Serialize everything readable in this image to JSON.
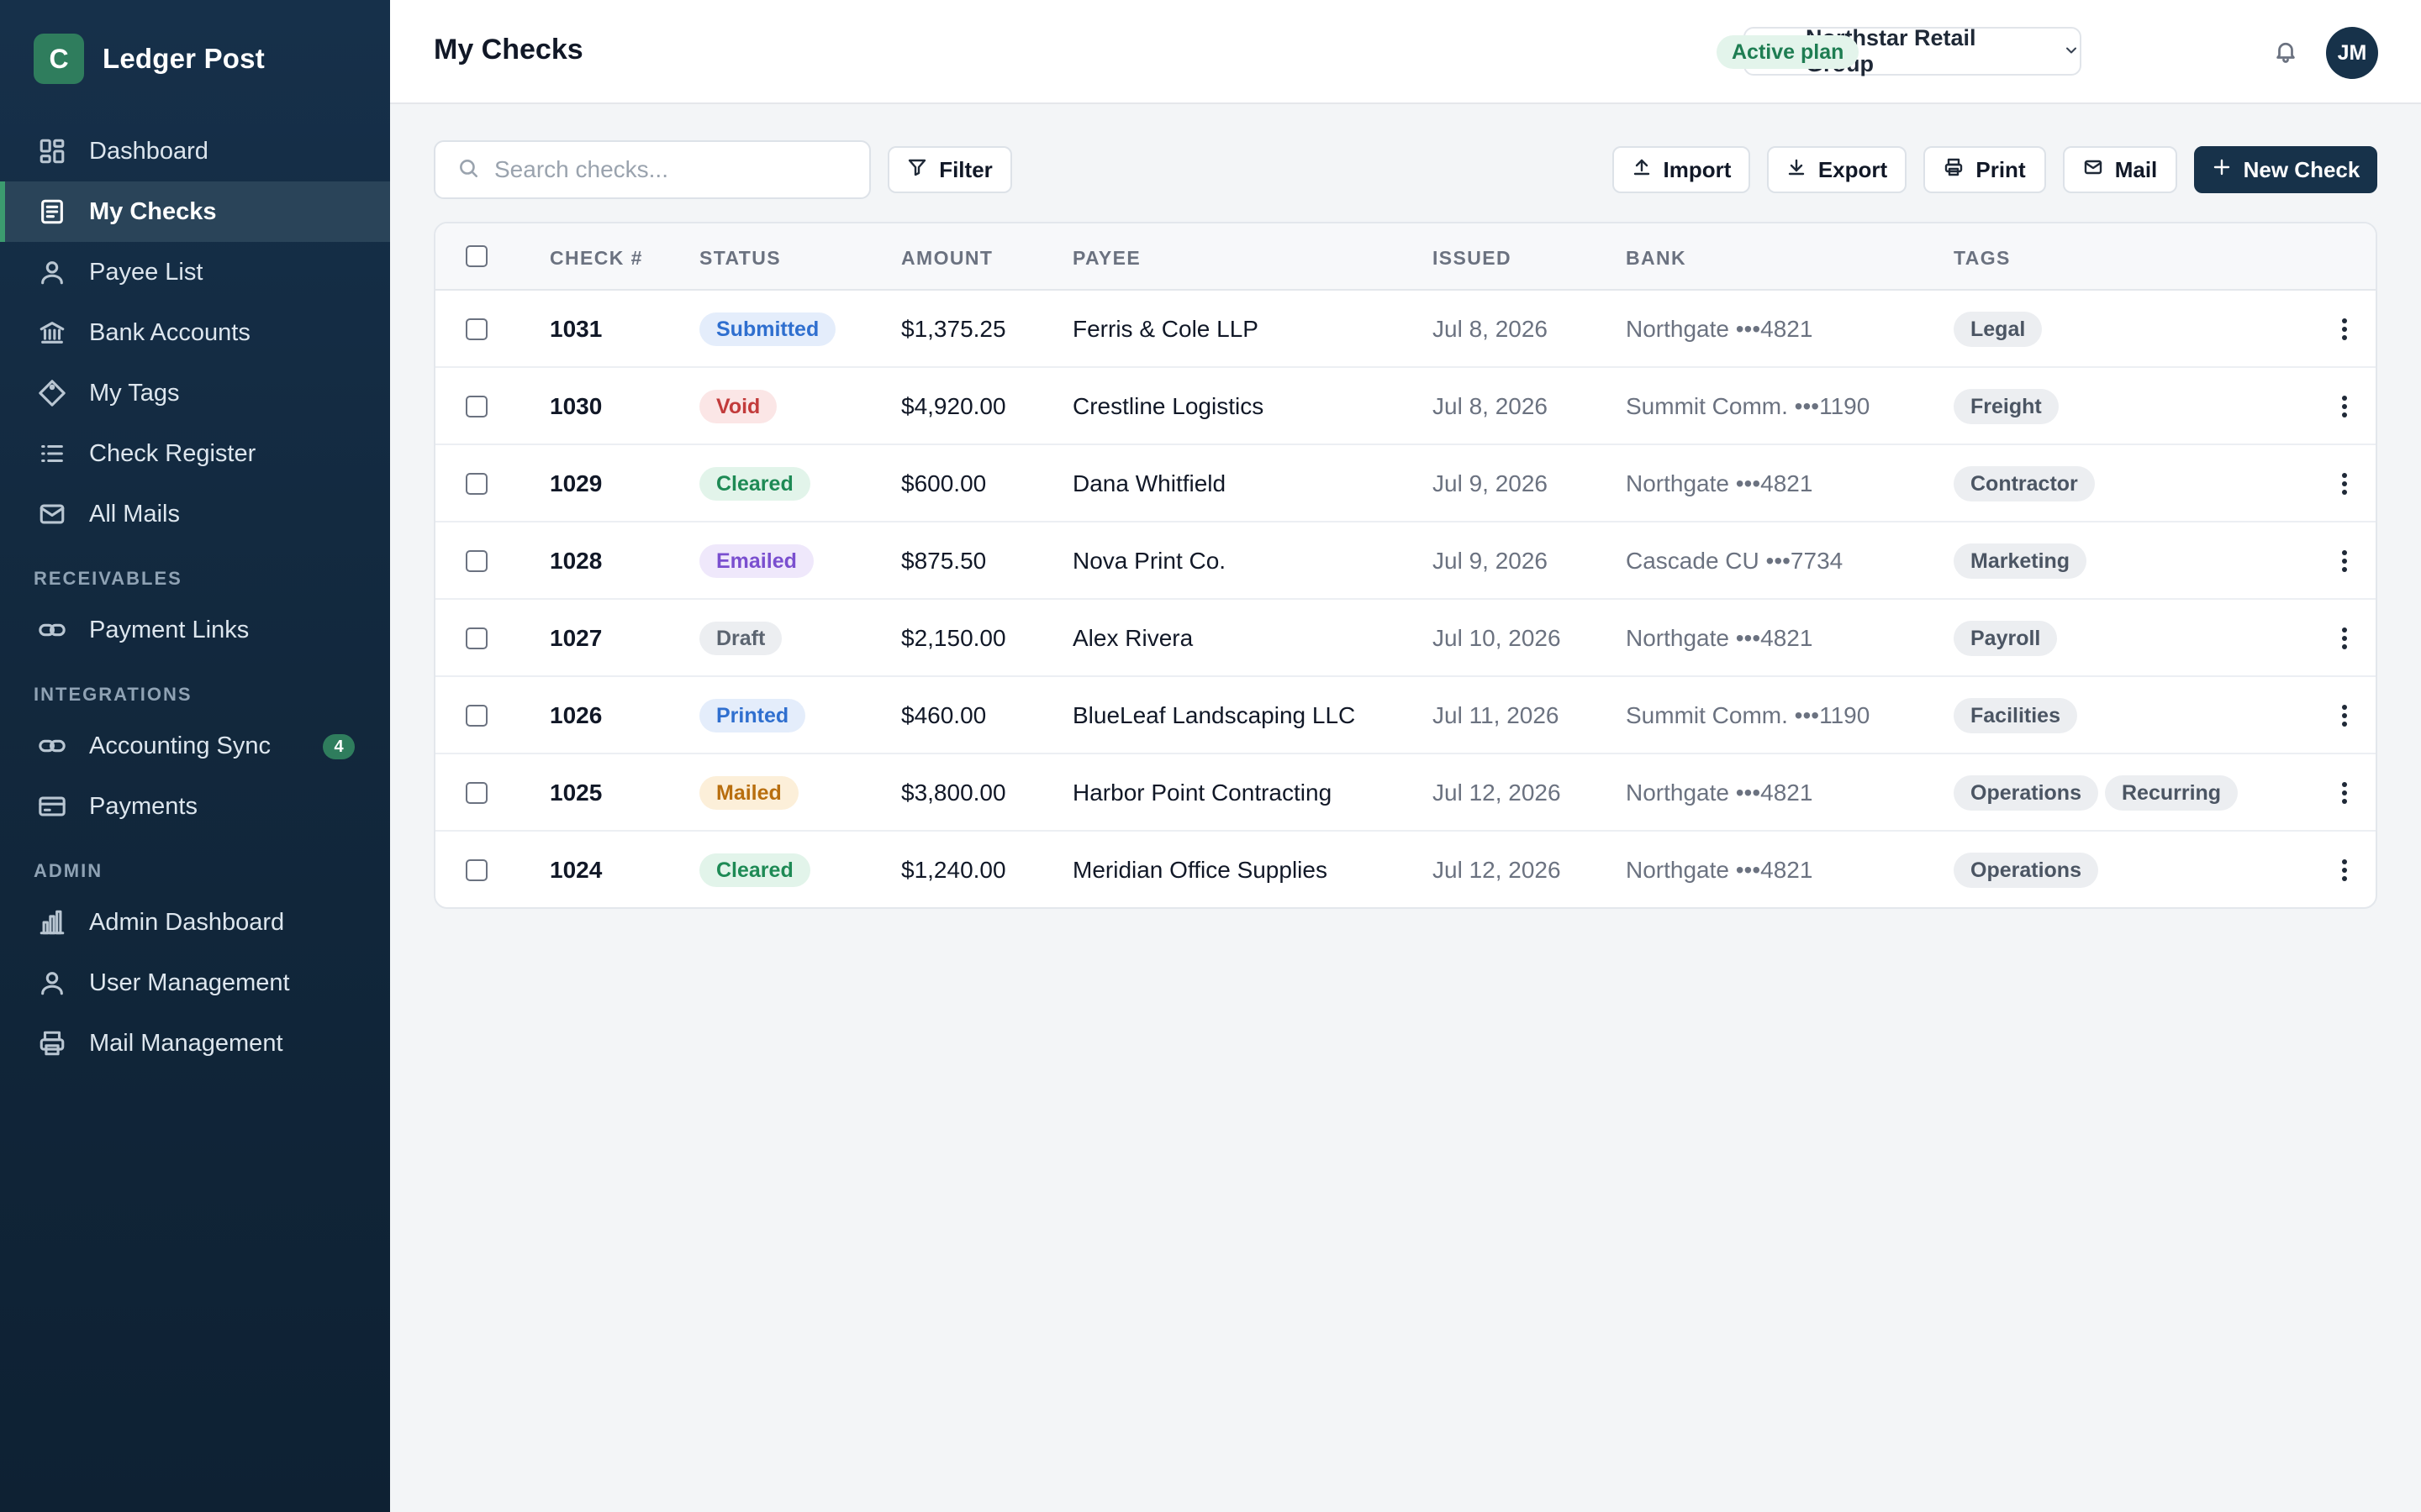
{
  "app": {
    "brand_letter": "C",
    "brand_name": "Ledger Post",
    "page_title": "My Checks"
  },
  "sidebar": {
    "main": [
      {
        "label": "Dashboard",
        "icon": "dashboard-icon"
      },
      {
        "label": "My Checks",
        "icon": "checks-icon",
        "active": true
      },
      {
        "label": "Payee List",
        "icon": "user-icon"
      },
      {
        "label": "Bank Accounts",
        "icon": "bank-icon"
      },
      {
        "label": "My Tags",
        "icon": "tag-icon"
      },
      {
        "label": "Check Register",
        "icon": "list-icon"
      },
      {
        "label": "All Mails",
        "icon": "mail-icon"
      }
    ],
    "sections": {
      "receivables": "RECEIVABLES",
      "integrations": "INTEGRATIONS",
      "admin": "ADMIN"
    },
    "receivables": [
      {
        "label": "Payment Links",
        "icon": "link-icon"
      }
    ],
    "integrations": [
      {
        "label": "Accounting Sync",
        "icon": "sync-icon",
        "badge": "4"
      },
      {
        "label": "Payments",
        "icon": "card-icon"
      }
    ],
    "admin": [
      {
        "label": "Admin Dashboard",
        "icon": "bar-chart-icon"
      },
      {
        "label": "User Management",
        "icon": "user-icon"
      },
      {
        "label": "Mail Management",
        "icon": "printer-icon"
      }
    ]
  },
  "header": {
    "org_name": "Northstar Retail Group",
    "plan_label": "Active plan",
    "avatar_initials": "JM"
  },
  "toolbar": {
    "search_placeholder": "Search checks...",
    "filter_label": "Filter",
    "import_label": "Import",
    "export_label": "Export",
    "print_label": "Print",
    "mail_label": "Mail",
    "new_check_label": "New Check"
  },
  "table": {
    "columns": {
      "check_no": "CHECK #",
      "status": "STATUS",
      "amount": "AMOUNT",
      "payee": "PAYEE",
      "issued": "ISSUED",
      "bank": "BANK",
      "tags": "TAGS"
    },
    "rows": [
      {
        "check_no": "1031",
        "status": "Submitted",
        "amount": "$1,375.25",
        "payee": "Ferris & Cole LLP",
        "issued": "Jul 8, 2026",
        "bank": "Northgate •••4821",
        "tags": [
          "Legal"
        ]
      },
      {
        "check_no": "1030",
        "status": "Void",
        "amount": "$4,920.00",
        "payee": "Crestline Logistics",
        "issued": "Jul 8, 2026",
        "bank": "Summit Comm. •••1190",
        "tags": [
          "Freight"
        ]
      },
      {
        "check_no": "1029",
        "status": "Cleared",
        "amount": "$600.00",
        "payee": "Dana Whitfield",
        "issued": "Jul 9, 2026",
        "bank": "Northgate •••4821",
        "tags": [
          "Contractor"
        ]
      },
      {
        "check_no": "1028",
        "status": "Emailed",
        "amount": "$875.50",
        "payee": "Nova Print Co.",
        "issued": "Jul 9, 2026",
        "bank": "Cascade CU •••7734",
        "tags": [
          "Marketing"
        ]
      },
      {
        "check_no": "1027",
        "status": "Draft",
        "amount": "$2,150.00",
        "payee": "Alex Rivera",
        "issued": "Jul 10, 2026",
        "bank": "Northgate •••4821",
        "tags": [
          "Payroll"
        ]
      },
      {
        "check_no": "1026",
        "status": "Printed",
        "amount": "$460.00",
        "payee": "BlueLeaf Landscaping LLC",
        "issued": "Jul 11, 2026",
        "bank": "Summit Comm. •••1190",
        "tags": [
          "Facilities"
        ]
      },
      {
        "check_no": "1025",
        "status": "Mailed",
        "amount": "$3,800.00",
        "payee": "Harbor Point Contracting",
        "issued": "Jul 12, 2026",
        "bank": "Northgate •••4821",
        "tags": [
          "Operations",
          "Recurring"
        ]
      },
      {
        "check_no": "1024",
        "status": "Cleared",
        "amount": "$1,240.00",
        "payee": "Meridian Office Supplies",
        "issued": "Jul 12, 2026",
        "bank": "Northgate •••4821",
        "tags": [
          "Operations"
        ]
      }
    ]
  },
  "status_colors": {
    "Submitted": {
      "bg": "#e4edfb",
      "fg": "#2f6fcf"
    },
    "Void": {
      "bg": "#fbe6e6",
      "fg": "#c23b3b"
    },
    "Cleared": {
      "bg": "#e2f4ea",
      "fg": "#1e8a55"
    },
    "Emailed": {
      "bg": "#efe8fb",
      "fg": "#7a4fcf"
    },
    "Draft": {
      "bg": "#eceef1",
      "fg": "#5b6470"
    },
    "Printed": {
      "bg": "#e4edfb",
      "fg": "#2f6fcf"
    },
    "Mailed": {
      "bg": "#fcefd9",
      "fg": "#b86e0e"
    }
  }
}
